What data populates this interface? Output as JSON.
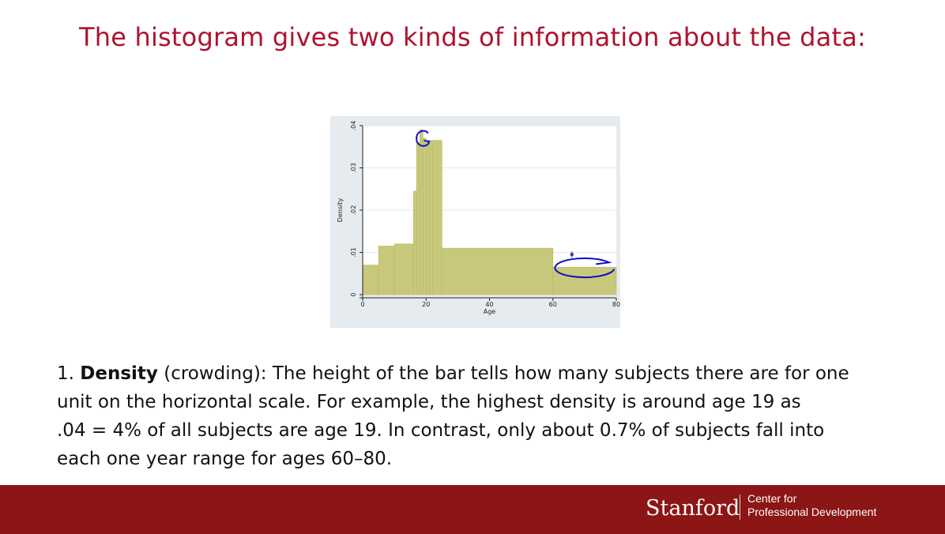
{
  "slide": {
    "title": "The histogram gives two kinds of information about the data:"
  },
  "body": {
    "number": "1.",
    "term": "Density",
    "line1_rest": " (crowding): The height of the bar tells how many subjects there are for one",
    "line2": "unit on the horizontal scale. For example, the highest density is around age 19 as",
    "line3": ".04 = 4% of all subjects are age 19. In contrast, only about 0.7% of subjects fall into",
    "line4": "each one year range for ages 60–80."
  },
  "footer": {
    "brand": "Stanford",
    "sub_line1": "Center for",
    "sub_line2": "Professional Development"
  },
  "colors": {
    "title": "#b0122e",
    "bar_fill": "#c8c87a",
    "bar_stroke": "#b8b86a",
    "annotation": "#1010c8",
    "footer_bg": "#8c1515",
    "plot_bg": "#ffffff",
    "frame_bg": "#e6ebef"
  },
  "chart_data": {
    "type": "bar",
    "xlabel": "Age",
    "ylabel": "Density",
    "xlim": [
      0,
      80
    ],
    "ylim": [
      0,
      0.04
    ],
    "x_ticks": [
      0,
      20,
      40,
      60,
      80
    ],
    "x_tick_labels": [
      "0",
      "20",
      "40",
      "60",
      "80"
    ],
    "y_ticks": [
      0,
      0.01,
      0.02,
      0.03,
      0.04
    ],
    "y_tick_labels": [
      "0",
      ".01",
      ".02",
      ".03",
      ".04"
    ],
    "grid": true,
    "bins": [
      {
        "x0": 0,
        "x1": 5,
        "density": 0.007
      },
      {
        "x0": 5,
        "x1": 10,
        "density": 0.0115
      },
      {
        "x0": 10,
        "x1": 16,
        "density": 0.012
      },
      {
        "x0": 16,
        "x1": 17,
        "density": 0.0245
      },
      {
        "x0": 17,
        "x1": 18,
        "density": 0.036
      },
      {
        "x0": 18,
        "x1": 19,
        "density": 0.039
      },
      {
        "x0": 19,
        "x1": 20,
        "density": 0.037
      },
      {
        "x0": 20,
        "x1": 21,
        "density": 0.0365
      },
      {
        "x0": 21,
        "x1": 22,
        "density": 0.0365
      },
      {
        "x0": 22,
        "x1": 25,
        "density": 0.0365
      },
      {
        "x0": 25,
        "x1": 60,
        "density": 0.011
      },
      {
        "x0": 60,
        "x1": 80,
        "density": 0.0065
      }
    ],
    "annotations": {
      "circled_peak_age": 19,
      "circled_tail_range": [
        60,
        80
      ],
      "marker_point": {
        "x": 66,
        "density": 0.0095
      }
    }
  }
}
